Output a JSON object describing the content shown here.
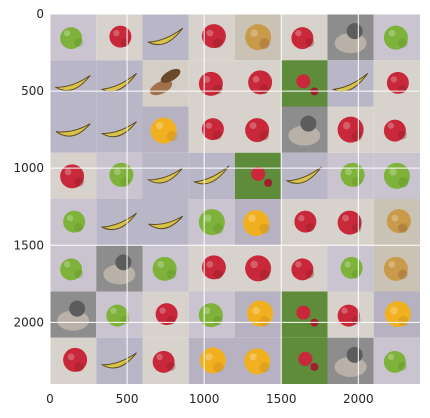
{
  "image_grid": {
    "rows": 8,
    "cols": 8,
    "x_ticks": [
      "0",
      "500",
      "1000",
      "1500",
      "2000"
    ],
    "x_tick_values": [
      0,
      500,
      1000,
      1500,
      2000
    ],
    "y_ticks": [
      "0",
      "500",
      "1000",
      "1500",
      "2000"
    ],
    "y_tick_values": [
      0,
      500,
      1000,
      1500,
      2000
    ],
    "x_range": [
      0,
      2400
    ],
    "y_range": [
      0,
      2400
    ],
    "grid": true,
    "tiles": [
      [
        "lime",
        "red-apple",
        "banana",
        "red-apple",
        "apple-gold",
        "red-apple",
        "hand-gray",
        "lime"
      ],
      [
        "banana",
        "banana",
        "potato",
        "red-apple",
        "red-apple",
        "green-grass",
        "banana",
        "red-apple"
      ],
      [
        "banana",
        "banana",
        "orange",
        "red-apple",
        "red-apple",
        "hand-gray",
        "red-apple",
        "red-apple"
      ],
      [
        "red-apple",
        "lime",
        "banana",
        "banana",
        "green-grass",
        "banana",
        "lime",
        "lime"
      ],
      [
        "lime",
        "banana",
        "banana",
        "lime",
        "orange",
        "red-apple",
        "red-apple",
        "apple-gold"
      ],
      [
        "lime",
        "hand-gray",
        "lime",
        "red-apple",
        "red-apple",
        "red-apple",
        "lime",
        "apple-gold"
      ],
      [
        "hand-gray",
        "lime",
        "red-apple",
        "lime",
        "orange",
        "green-grass",
        "red-apple",
        "orange"
      ],
      [
        "red-apple",
        "banana",
        "red-apple",
        "orange",
        "orange",
        "green-grass",
        "hand-gray",
        "lime"
      ]
    ],
    "colors": {
      "grid_line": "#ffffff",
      "tick_text": "#262626"
    }
  }
}
